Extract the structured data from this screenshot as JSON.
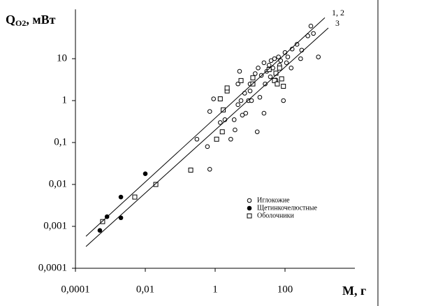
{
  "chart_data": {
    "type": "scatter",
    "y_label": {
      "main": "Q",
      "sub": "O2",
      "rest": ", мВт"
    },
    "x_label": "M, г",
    "log_x": true,
    "log_y": true,
    "xlim": [
      0.0001,
      10000
    ],
    "ylim": [
      0.0001,
      150
    ],
    "xticks": [
      {
        "value": 0.0001,
        "label": "0,0001"
      },
      {
        "value": 0.01,
        "label": "0,01"
      },
      1,
      100
    ],
    "yticks": [
      {
        "value": 0.0001,
        "label": "0,0001"
      },
      {
        "value": 0.001,
        "label": "0,001"
      },
      {
        "value": 0.01,
        "label": "0,01"
      },
      {
        "value": 0.1,
        "label": "0,1"
      },
      1,
      10
    ],
    "legend_position": "lower right",
    "series": [
      {
        "name": "Иглокожие",
        "marker": "open-circle",
        "color": "#000000",
        "x": [
          0.3,
          0.6,
          0.7,
          0.7,
          0.9,
          1.4,
          1.9,
          2.8,
          3.5,
          3.7,
          4.5,
          4.5,
          5,
          5.5,
          6,
          7,
          7.5,
          9,
          10,
          10,
          11,
          14,
          16,
          17,
          19,
          21,
          25,
          25,
          27,
          30,
          35,
          38,
          40,
          45,
          50,
          55,
          65,
          70,
          75,
          90,
          100,
          110,
          120,
          150,
          160,
          220,
          280,
          300,
          450,
          550,
          650,
          900
        ],
        "values": [
          0.12,
          0.08,
          0.023,
          0.55,
          1.1,
          0.3,
          0.35,
          0.12,
          0.35,
          0.2,
          0.8,
          2.5,
          5,
          1,
          0.45,
          1.5,
          0.5,
          1,
          2.5,
          1.7,
          1,
          4.4,
          0.18,
          6,
          1.2,
          4,
          8,
          0.5,
          2.5,
          5,
          7,
          3.7,
          9,
          6,
          10,
          3.1,
          11,
          7,
          9,
          1,
          14,
          8,
          11,
          6,
          17,
          22,
          10,
          16,
          35,
          60,
          40,
          11
        ]
      },
      {
        "name": "Щетинкочелюстные",
        "marker": "filled-circle",
        "color": "#000000",
        "x": [
          0.0005,
          0.0008,
          0.002,
          0.002,
          0.01
        ],
        "values": [
          0.0008,
          0.0017,
          0.005,
          0.0016,
          0.018
        ]
      },
      {
        "name": "Оболочники",
        "marker": "open-square",
        "color": "#000000",
        "x": [
          0.0006,
          0.005,
          0.02,
          0.2,
          1.1,
          1.6,
          1.4,
          1.7,
          2.2,
          2.2,
          5.5,
          12,
          12,
          35,
          50,
          55,
          60,
          70,
          80,
          90
        ],
        "values": [
          0.0013,
          0.005,
          0.01,
          0.022,
          0.12,
          0.18,
          1.1,
          0.6,
          1.7,
          2,
          3,
          2.5,
          3.5,
          5.5,
          3,
          4.5,
          2.5,
          6,
          3.3,
          2.2
        ]
      },
      {
        "name": "1, 2",
        "marker": "line",
        "color": "#000000",
        "x": [
          0.0002,
          1380
        ],
        "values": [
          0.00058,
          95
        ]
      },
      {
        "name": "3",
        "marker": "line",
        "color": "#000000",
        "x": [
          0.0002,
          1740
        ],
        "values": [
          0.00033,
          54
        ]
      }
    ]
  }
}
